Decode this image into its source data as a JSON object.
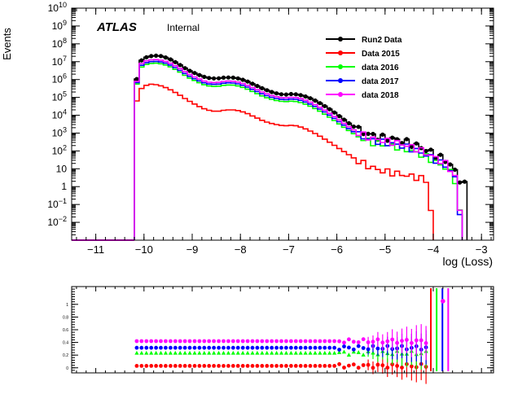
{
  "chart_data": [
    {
      "type": "line",
      "subtype": "step-histogram",
      "ylabel": "Events",
      "xlabel": "log (Loss)",
      "y_scale": "log",
      "xlim": [
        -11.5,
        -2.75
      ],
      "ylim_exp": [
        -3,
        10
      ],
      "x_ticks": [
        -11,
        -10,
        -9,
        -8,
        -7,
        -6,
        -5,
        -4,
        -3
      ],
      "x_tick_labels": [
        "−11",
        "−10",
        "−9",
        "−8",
        "−7",
        "−6",
        "−5",
        "−4",
        "−3"
      ],
      "y_ticks": [
        {
          "v": 10,
          "base": "10",
          "exp": "10"
        },
        {
          "v": 9,
          "base": "10",
          "exp": "9"
        },
        {
          "v": 8,
          "base": "10",
          "exp": "8"
        },
        {
          "v": 7,
          "base": "10",
          "exp": "7"
        },
        {
          "v": 6,
          "base": "10",
          "exp": "6"
        },
        {
          "v": 5,
          "base": "10",
          "exp": "5"
        },
        {
          "v": 4,
          "base": "10",
          "exp": "4"
        },
        {
          "v": 3,
          "base": "10",
          "exp": "3"
        },
        {
          "v": 2,
          "base": "10",
          "exp": "2"
        },
        {
          "v": 1,
          "base": "10",
          "exp": ""
        },
        {
          "v": 0,
          "base": "1",
          "exp": ""
        },
        {
          "v": -1,
          "base": "10",
          "exp": "−1"
        },
        {
          "v": -2,
          "base": "10",
          "exp": "−2"
        }
      ],
      "grid": false,
      "legend_position": "top-right",
      "annotations": {
        "experiment": "ATLAS",
        "status": "Internal"
      },
      "series": [
        {
          "name": "Run2 Data",
          "color": "#000000",
          "markers": true,
          "shape": [
            [
              -10.2,
              5.1
            ],
            [
              -10.1,
              6.95
            ],
            [
              -10.0,
              7.2
            ],
            [
              -9.9,
              7.3
            ],
            [
              -9.7,
              7.35
            ],
            [
              -9.5,
              7.2
            ],
            [
              -9.3,
              6.9
            ],
            [
              -9.1,
              6.55
            ],
            [
              -8.9,
              6.3
            ],
            [
              -8.7,
              6.1
            ],
            [
              -8.5,
              6.05
            ],
            [
              -8.3,
              6.12
            ],
            [
              -8.1,
              6.1
            ],
            [
              -7.9,
              5.95
            ],
            [
              -7.7,
              5.7
            ],
            [
              -7.5,
              5.45
            ],
            [
              -7.3,
              5.25
            ],
            [
              -7.1,
              5.15
            ],
            [
              -6.9,
              5.2
            ],
            [
              -6.7,
              5.1
            ],
            [
              -6.5,
              4.9
            ],
            [
              -6.3,
              4.6
            ],
            [
              -6.1,
              4.25
            ],
            [
              -5.9,
              3.85
            ],
            [
              -5.7,
              3.45
            ],
            [
              -5.5,
              3.1
            ],
            [
              -5.3,
              2.9
            ],
            [
              -5.1,
              2.75
            ],
            [
              -4.9,
              2.7
            ],
            [
              -4.7,
              2.6
            ],
            [
              -4.5,
              2.45
            ],
            [
              -4.3,
              2.25
            ],
            [
              -4.1,
              2.0
            ],
            [
              -3.9,
              1.7
            ],
            [
              -3.7,
              1.4
            ],
            [
              -3.6,
              1.1
            ],
            [
              -3.5,
              0.6
            ],
            [
              -3.4,
              0.2
            ],
            [
              -3.3,
              0.0
            ]
          ]
        },
        {
          "name": "Data 2015",
          "color": "#ff0000",
          "markers": false,
          "shape": [
            [
              -10.2,
              4.2
            ],
            [
              -10.1,
              5.4
            ],
            [
              -10.0,
              5.6
            ],
            [
              -9.9,
              5.75
            ],
            [
              -9.7,
              5.7
            ],
            [
              -9.5,
              5.5
            ],
            [
              -9.3,
              5.2
            ],
            [
              -9.1,
              4.85
            ],
            [
              -8.9,
              4.55
            ],
            [
              -8.7,
              4.3
            ],
            [
              -8.5,
              4.2
            ],
            [
              -8.3,
              4.3
            ],
            [
              -8.1,
              4.3
            ],
            [
              -7.9,
              4.15
            ],
            [
              -7.7,
              3.9
            ],
            [
              -7.5,
              3.65
            ],
            [
              -7.3,
              3.5
            ],
            [
              -7.1,
              3.4
            ],
            [
              -6.9,
              3.45
            ],
            [
              -6.7,
              3.3
            ],
            [
              -6.5,
              3.05
            ],
            [
              -6.3,
              2.75
            ],
            [
              -6.1,
              2.4
            ],
            [
              -5.9,
              2.05
            ],
            [
              -5.7,
              1.7
            ],
            [
              -5.5,
              1.35
            ],
            [
              -5.3,
              1.1
            ],
            [
              -5.1,
              0.9
            ],
            [
              -4.9,
              0.8
            ],
            [
              -4.7,
              0.7
            ],
            [
              -4.5,
              0.6
            ],
            [
              -4.3,
              0.5
            ],
            [
              -4.1,
              0.3
            ],
            [
              -4.0,
              -3.0
            ]
          ]
        },
        {
          "name": "data 2016",
          "color": "#00ff00",
          "markers": false,
          "shape": [
            [
              -10.2,
              4.9
            ],
            [
              -10.1,
              6.6
            ],
            [
              -10.0,
              6.8
            ],
            [
              -9.9,
              6.9
            ],
            [
              -9.7,
              6.92
            ],
            [
              -9.5,
              6.78
            ],
            [
              -9.3,
              6.5
            ],
            [
              -9.1,
              6.15
            ],
            [
              -8.9,
              5.88
            ],
            [
              -8.7,
              5.65
            ],
            [
              -8.5,
              5.6
            ],
            [
              -8.3,
              5.7
            ],
            [
              -8.1,
              5.68
            ],
            [
              -7.9,
              5.52
            ],
            [
              -7.7,
              5.27
            ],
            [
              -7.5,
              5.02
            ],
            [
              -7.3,
              4.85
            ],
            [
              -7.1,
              4.75
            ],
            [
              -6.9,
              4.8
            ],
            [
              -6.7,
              4.68
            ],
            [
              -6.5,
              4.45
            ],
            [
              -6.3,
              4.15
            ],
            [
              -6.1,
              3.8
            ],
            [
              -5.9,
              3.42
            ],
            [
              -5.7,
              3.05
            ],
            [
              -5.5,
              2.72
            ],
            [
              -5.3,
              2.5
            ],
            [
              -5.1,
              2.38
            ],
            [
              -4.9,
              2.3
            ],
            [
              -4.7,
              2.2
            ],
            [
              -4.5,
              2.05
            ],
            [
              -4.3,
              1.85
            ],
            [
              -4.1,
              1.6
            ],
            [
              -3.9,
              1.3
            ],
            [
              -3.7,
              1.0
            ],
            [
              -3.6,
              0.6
            ],
            [
              -3.5,
              0.1
            ],
            [
              -3.4,
              -3.0
            ]
          ]
        },
        {
          "name": "data 2017",
          "color": "#0000ff",
          "markers": false,
          "shape": [
            [
              -10.2,
              4.95
            ],
            [
              -10.1,
              6.7
            ],
            [
              -10.0,
              6.9
            ],
            [
              -9.9,
              7.0
            ],
            [
              -9.7,
              7.02
            ],
            [
              -9.5,
              6.88
            ],
            [
              -9.3,
              6.6
            ],
            [
              -9.1,
              6.25
            ],
            [
              -8.9,
              5.98
            ],
            [
              -8.7,
              5.76
            ],
            [
              -8.5,
              5.72
            ],
            [
              -8.3,
              5.82
            ],
            [
              -8.1,
              5.8
            ],
            [
              -7.9,
              5.64
            ],
            [
              -7.7,
              5.39
            ],
            [
              -7.5,
              5.14
            ],
            [
              -7.3,
              4.96
            ],
            [
              -7.1,
              4.86
            ],
            [
              -6.9,
              4.92
            ],
            [
              -6.7,
              4.8
            ],
            [
              -6.5,
              4.57
            ],
            [
              -6.3,
              4.27
            ],
            [
              -6.1,
              3.92
            ],
            [
              -5.9,
              3.54
            ],
            [
              -5.7,
              3.16
            ],
            [
              -5.5,
              2.83
            ],
            [
              -5.3,
              2.62
            ],
            [
              -5.1,
              2.5
            ],
            [
              -4.9,
              2.42
            ],
            [
              -4.7,
              2.32
            ],
            [
              -4.5,
              2.17
            ],
            [
              -4.3,
              1.97
            ],
            [
              -4.1,
              1.72
            ],
            [
              -3.9,
              1.42
            ],
            [
              -3.7,
              1.1
            ],
            [
              -3.6,
              0.7
            ],
            [
              -3.5,
              0.2
            ],
            [
              -3.4,
              -3.0
            ]
          ]
        },
        {
          "name": "data 2018",
          "color": "#ff00ff",
          "markers": false,
          "shape": [
            [
              -10.2,
              5.0
            ],
            [
              -10.1,
              6.8
            ],
            [
              -10.0,
              7.0
            ],
            [
              -9.9,
              7.1
            ],
            [
              -9.7,
              7.12
            ],
            [
              -9.5,
              6.98
            ],
            [
              -9.3,
              6.7
            ],
            [
              -9.1,
              6.35
            ],
            [
              -8.9,
              6.08
            ],
            [
              -8.7,
              5.86
            ],
            [
              -8.5,
              5.82
            ],
            [
              -8.3,
              5.92
            ],
            [
              -8.1,
              5.9
            ],
            [
              -7.9,
              5.74
            ],
            [
              -7.7,
              5.49
            ],
            [
              -7.5,
              5.24
            ],
            [
              -7.3,
              5.06
            ],
            [
              -7.1,
              4.96
            ],
            [
              -6.9,
              5.02
            ],
            [
              -6.7,
              4.9
            ],
            [
              -6.5,
              4.67
            ],
            [
              -6.3,
              4.37
            ],
            [
              -6.1,
              4.02
            ],
            [
              -5.9,
              3.64
            ],
            [
              -5.7,
              3.26
            ],
            [
              -5.5,
              2.93
            ],
            [
              -5.3,
              2.72
            ],
            [
              -5.1,
              2.6
            ],
            [
              -4.9,
              2.52
            ],
            [
              -4.7,
              2.42
            ],
            [
              -4.5,
              2.27
            ],
            [
              -4.3,
              2.07
            ],
            [
              -4.1,
              1.82
            ],
            [
              -3.9,
              1.52
            ],
            [
              -3.7,
              1.2
            ],
            [
              -3.6,
              0.8
            ],
            [
              -3.5,
              0.3
            ],
            [
              -3.4,
              -3.0
            ]
          ]
        }
      ]
    },
    {
      "type": "scatter",
      "panel": "ratio",
      "xlim": [
        -11.5,
        -2.75
      ],
      "ylim": [
        -0.08,
        1.28
      ],
      "y_ticks": [
        0,
        0.2,
        0.4,
        0.6,
        0.8,
        1
      ],
      "y_tick_labels": [
        "0",
        "0.2",
        "0.4",
        "0.6",
        "0.8",
        "1"
      ],
      "x_range_points": [
        -10.2,
        -4.1
      ],
      "series": [
        {
          "name": "Data 2015",
          "color": "#ff0000",
          "level": 0.03,
          "marker": "circle"
        },
        {
          "name": "data 2016",
          "color": "#00ff00",
          "level": 0.235,
          "marker": "triangle"
        },
        {
          "name": "data 2017",
          "color": "#0000ff",
          "level": 0.315,
          "marker": "circle"
        },
        {
          "name": "data 2018",
          "color": "#ff00ff",
          "level": 0.42,
          "marker": "circle"
        }
      ]
    }
  ]
}
